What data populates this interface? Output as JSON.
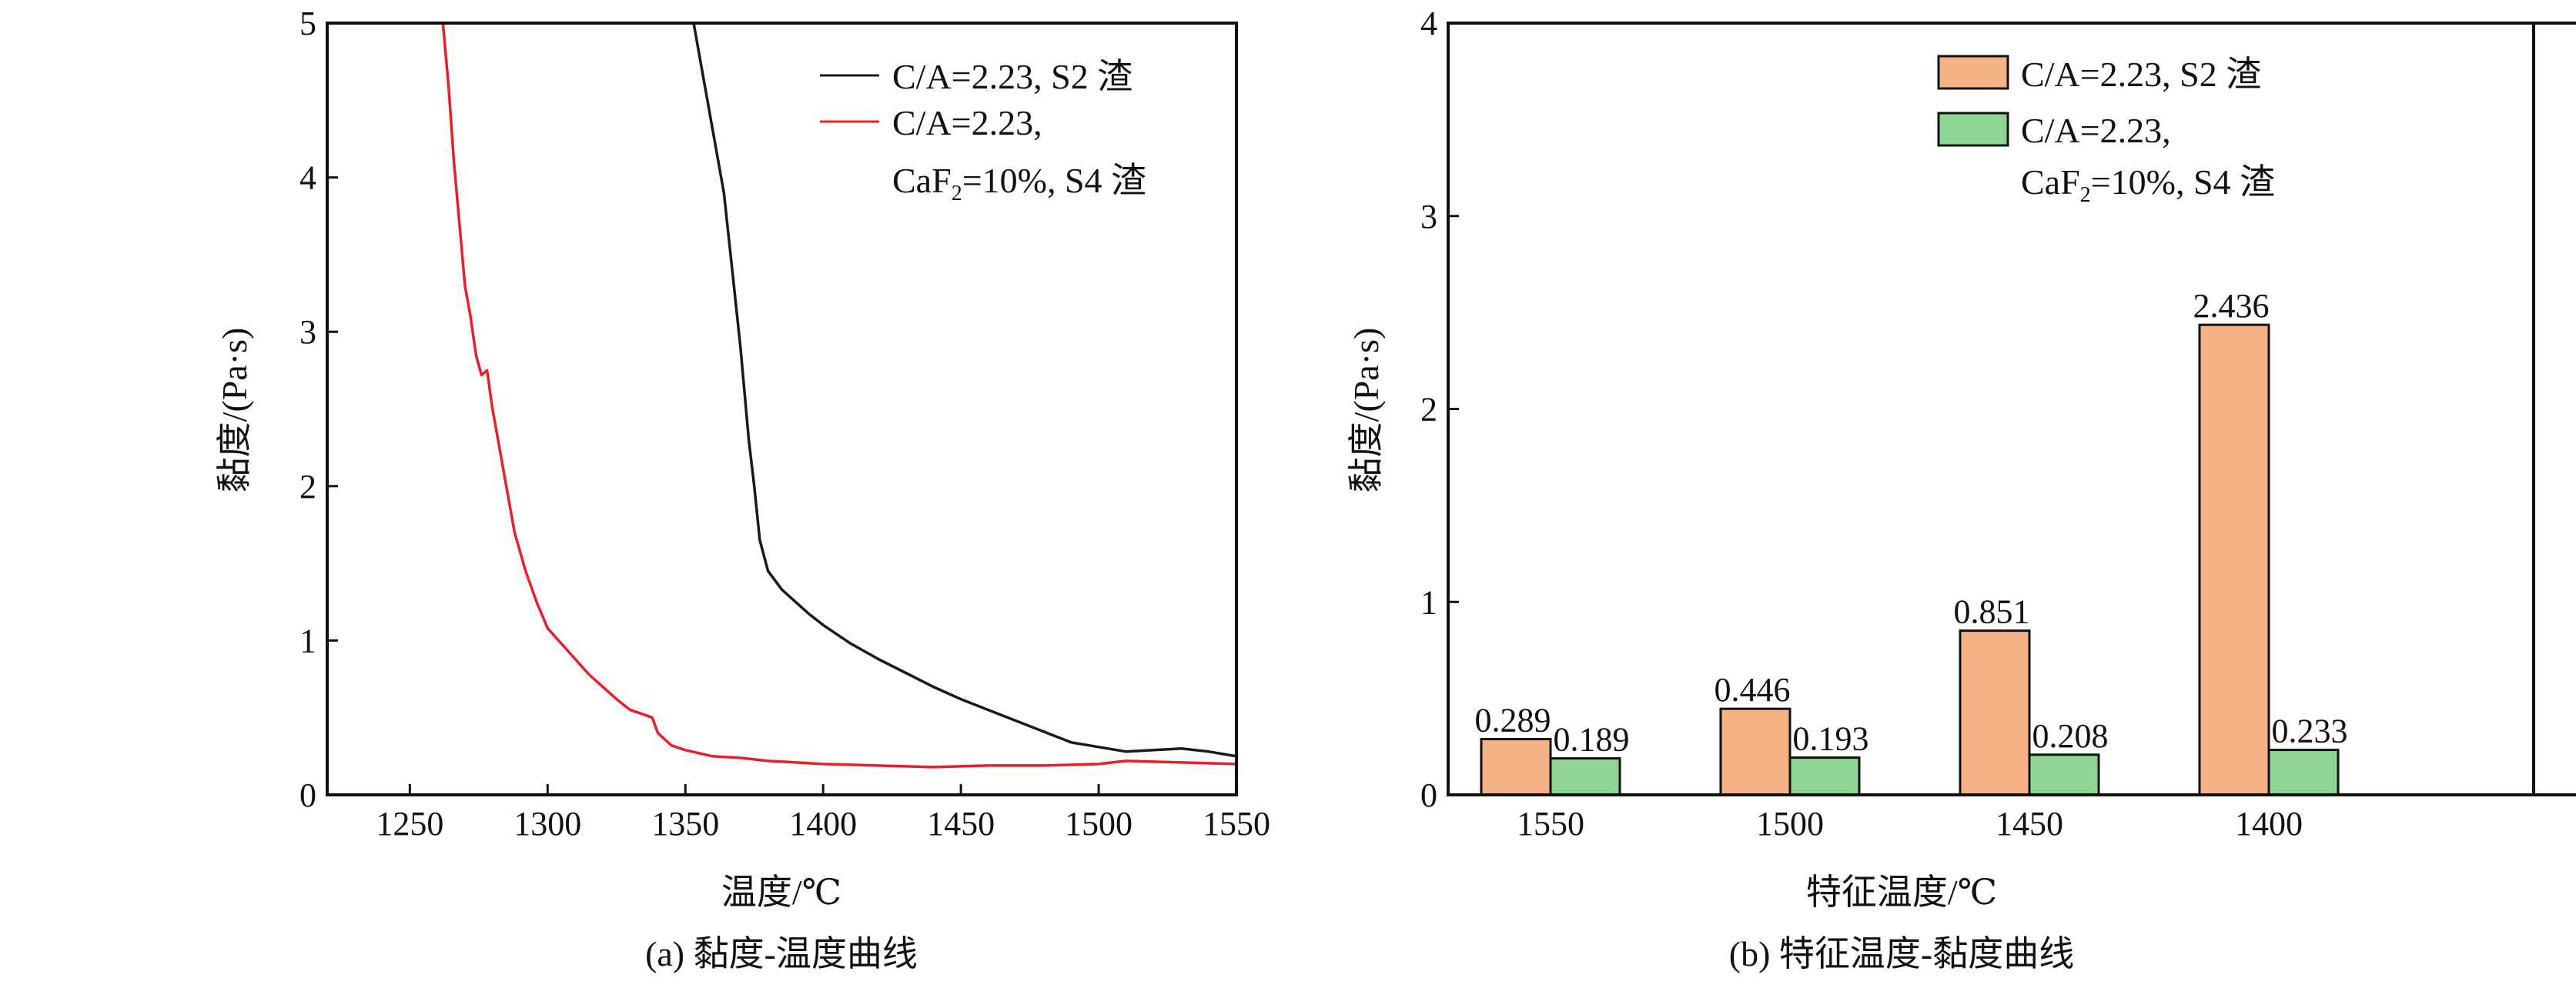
{
  "chart_data": [
    {
      "type": "line",
      "caption": "(a) 黏度-温度曲线",
      "xlabel": "温度/℃",
      "ylabel": "黏度/(Pa·s)",
      "xlim": [
        1220,
        1550
      ],
      "ylim": [
        0,
        5
      ],
      "xticks": [
        1250,
        1300,
        1350,
        1400,
        1450,
        1500,
        1550
      ],
      "yticks": [
        0,
        1,
        2,
        3,
        4,
        5
      ],
      "grid": false,
      "legend_position": "top-right",
      "series": [
        {
          "name": "C/A=2.23, S2 渣",
          "name_lines": [
            "C/A=2.23, S2 渣"
          ],
          "color": "#1a1a1a",
          "x": [
            1353,
            1356,
            1360,
            1364,
            1367,
            1370,
            1373,
            1375,
            1377,
            1380,
            1385,
            1390,
            1395,
            1400,
            1410,
            1420,
            1430,
            1440,
            1450,
            1460,
            1470,
            1480,
            1490,
            1500,
            1510,
            1520,
            1530,
            1540,
            1550
          ],
          "y": [
            5.0,
            4.7,
            4.3,
            3.9,
            3.4,
            2.9,
            2.3,
            2.0,
            1.65,
            1.45,
            1.33,
            1.25,
            1.17,
            1.1,
            0.98,
            0.88,
            0.79,
            0.7,
            0.62,
            0.55,
            0.48,
            0.41,
            0.34,
            0.31,
            0.28,
            0.29,
            0.3,
            0.28,
            0.25
          ]
        },
        {
          "name": "C/A=2.23, CaF2=10%, S4 渣",
          "name_lines": [
            "C/A=2.23,",
            "CaF",
            "2",
            "=10%, S4 渣"
          ],
          "color": "#e8202a",
          "x": [
            1262,
            1264,
            1266,
            1268,
            1270,
            1272,
            1274,
            1276,
            1278,
            1280,
            1282,
            1285,
            1288,
            1292,
            1296,
            1300,
            1305,
            1310,
            1315,
            1320,
            1325,
            1330,
            1335,
            1338,
            1340,
            1345,
            1350,
            1360,
            1370,
            1380,
            1400,
            1420,
            1440,
            1460,
            1480,
            1500,
            1510,
            1530,
            1550
          ],
          "y": [
            5.0,
            4.6,
            4.1,
            3.7,
            3.3,
            3.1,
            2.85,
            2.72,
            2.75,
            2.5,
            2.3,
            2.0,
            1.7,
            1.45,
            1.25,
            1.08,
            0.98,
            0.88,
            0.78,
            0.7,
            0.62,
            0.55,
            0.52,
            0.5,
            0.4,
            0.32,
            0.29,
            0.25,
            0.24,
            0.22,
            0.2,
            0.19,
            0.18,
            0.19,
            0.19,
            0.2,
            0.22,
            0.21,
            0.2
          ]
        }
      ]
    },
    {
      "type": "bar",
      "caption": "(b) 特征温度-黏度曲线",
      "xlabel": "特征温度/℃",
      "ylabel": "黏度/(Pa·s)",
      "ylim": [
        0,
        4
      ],
      "yticks": [
        0,
        1,
        2,
        3,
        4
      ],
      "grid": false,
      "legend_position": "top-right",
      "categories": [
        "1550",
        "1500",
        "1450",
        "1400"
      ],
      "series": [
        {
          "name": "C/A=2.23, S2 渣",
          "name_lines": [
            "C/A=2.23, S2 渣"
          ],
          "color": "#f5b286",
          "values": [
            0.289,
            0.446,
            0.851,
            2.436
          ],
          "labels": [
            "0.289",
            "0.446",
            "0.851",
            "2.436"
          ]
        },
        {
          "name": "C/A=2.23, CaF2=10%, S4 渣",
          "name_lines": [
            "C/A=2.23,",
            "CaF",
            "2",
            "=10%, S4 渣"
          ],
          "color": "#8fd694",
          "values": [
            0.189,
            0.193,
            0.208,
            0.233
          ],
          "labels": [
            "0.189",
            "0.193",
            "0.208",
            "0.233"
          ]
        }
      ]
    }
  ]
}
